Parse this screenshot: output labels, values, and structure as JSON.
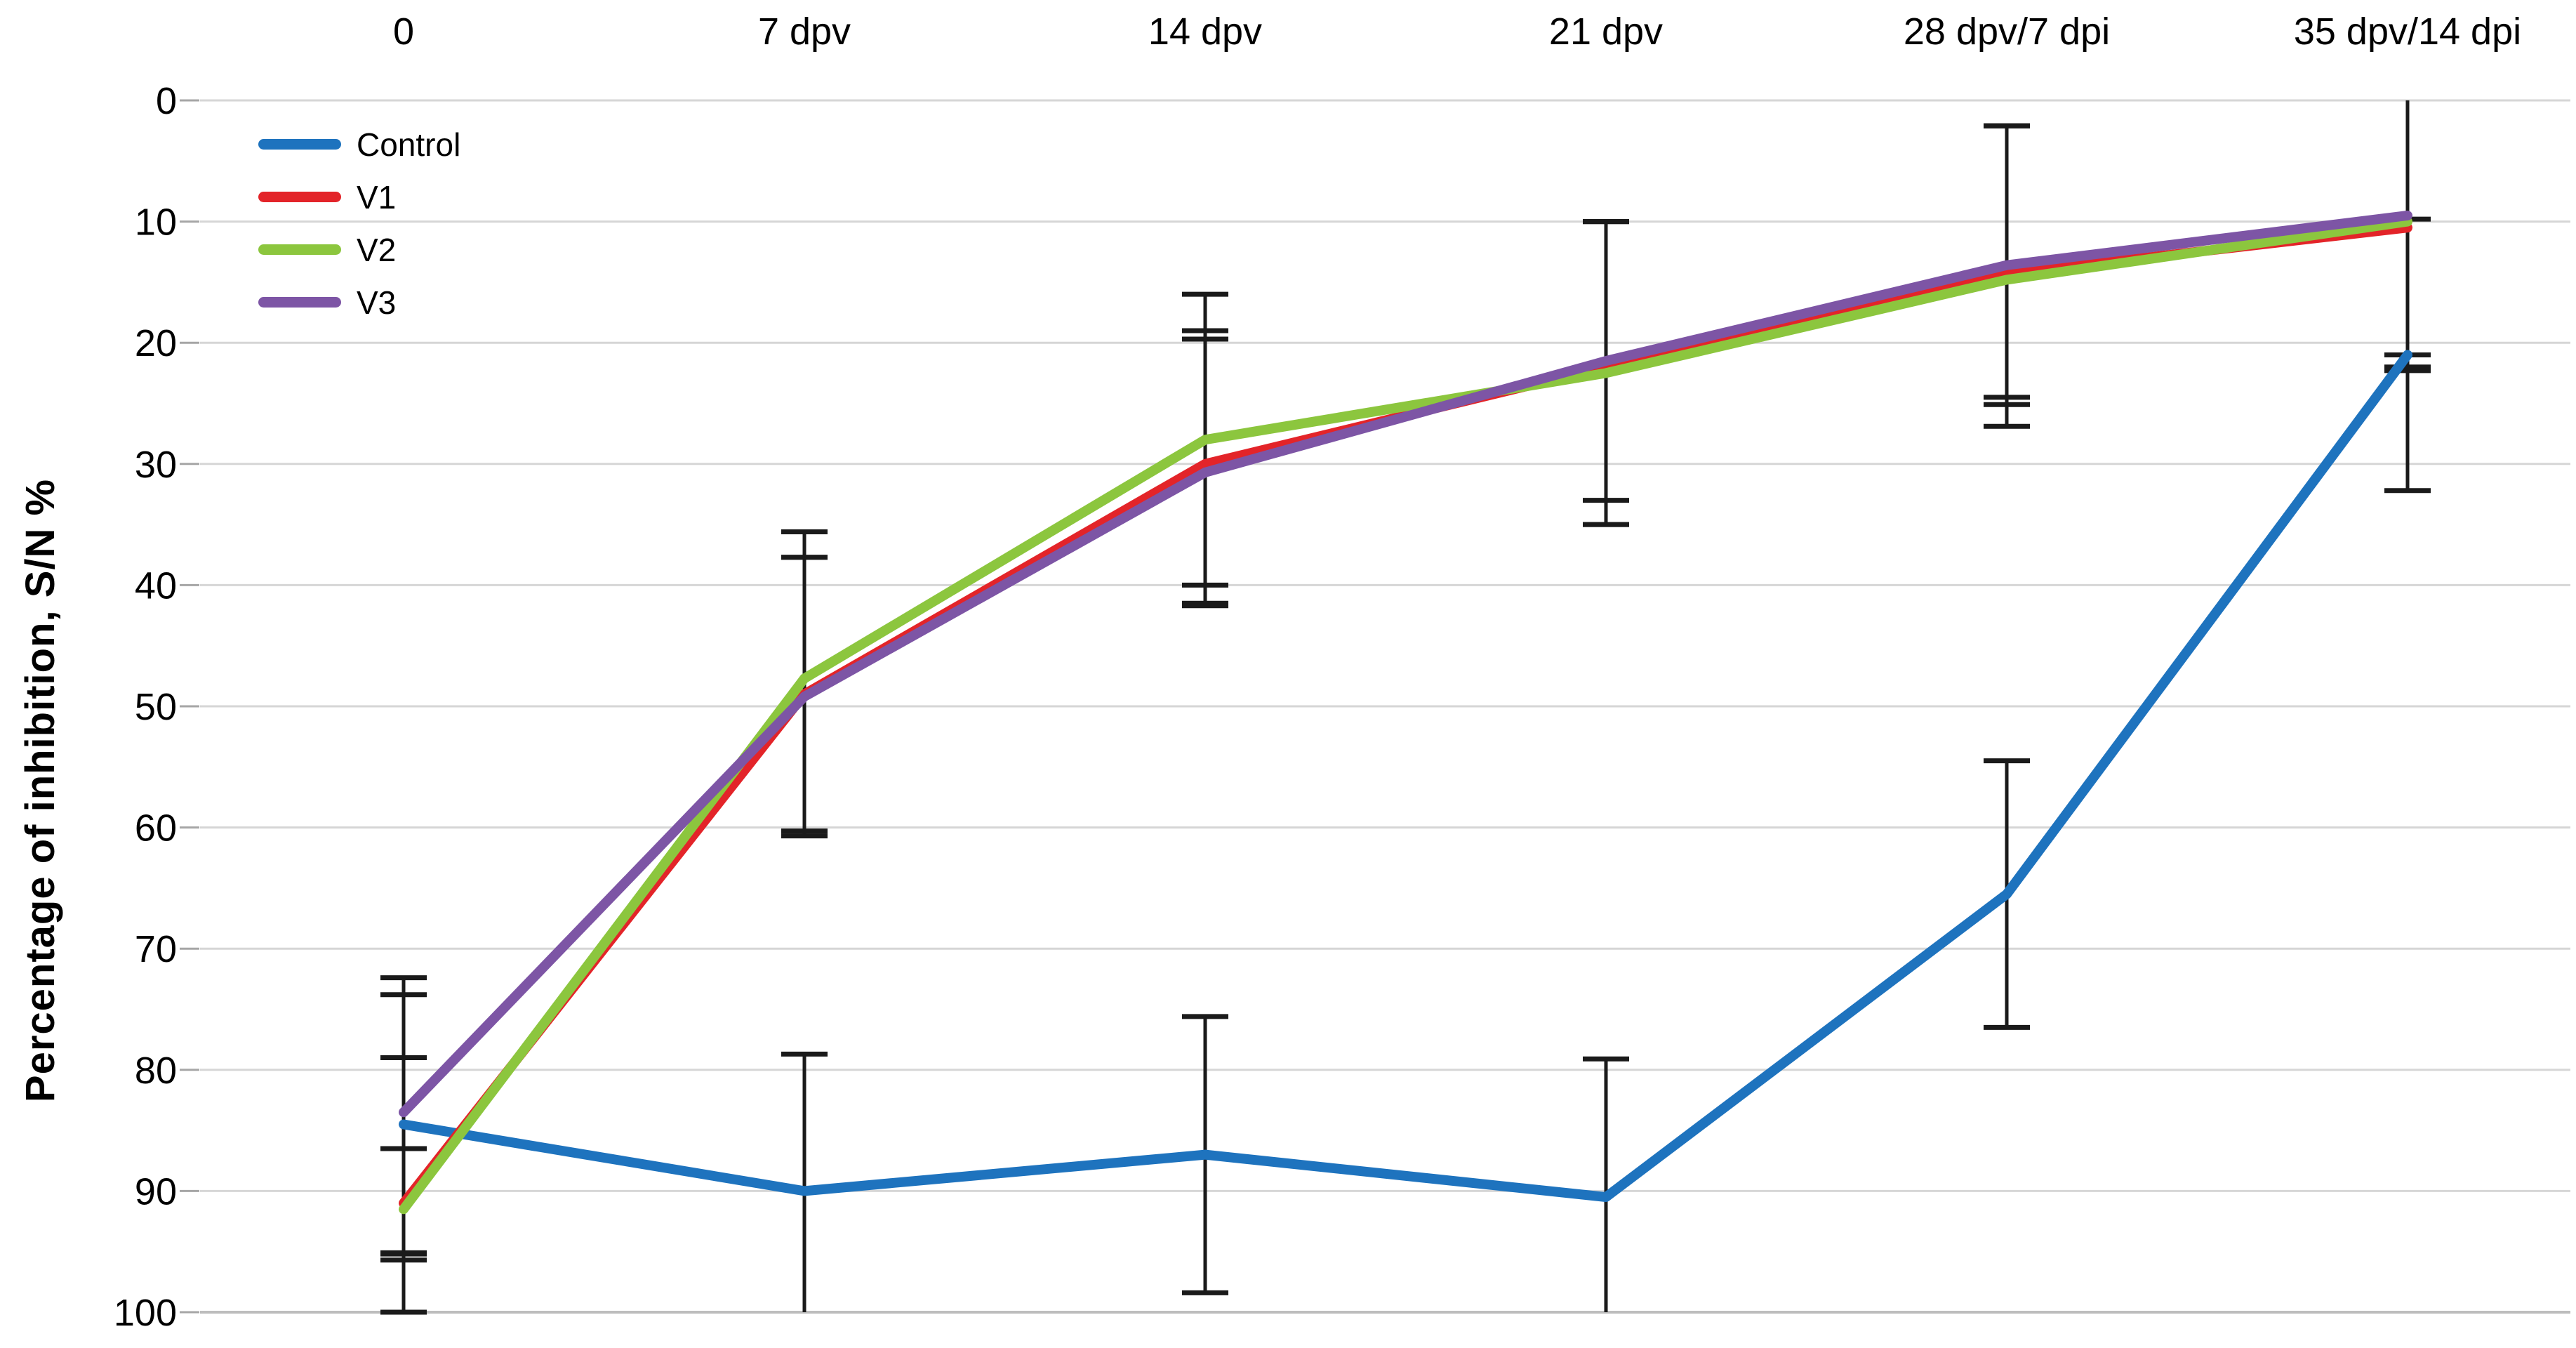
{
  "chart_data": {
    "type": "line",
    "title": "",
    "ylabel": "Percentage of inhibition, S/N %",
    "xlabel": "",
    "grid": true,
    "legend_position": "top-left",
    "error_bars": true,
    "y_axis": {
      "min": 0,
      "max": 100,
      "step": 10,
      "inverted": true,
      "tick_labels": [
        "0",
        "10",
        "20",
        "30",
        "40",
        "50",
        "60",
        "70",
        "80",
        "90",
        "100"
      ]
    },
    "categories": [
      "0",
      "7 dpv",
      "14 dpv",
      "21 dpv",
      "28 dpv/7 dpi",
      "35 dpv/14 dpi"
    ],
    "series": [
      {
        "name": "Control",
        "color": "#1E73BE",
        "values": [
          84.5,
          90,
          87,
          90.5,
          65.5,
          21
        ],
        "err_minus": [
          10.7,
          11.3,
          11.4,
          11.4,
          11,
          11.2
        ],
        "err_plus": [
          10.7,
          11.3,
          11.4,
          11.4,
          11,
          11.2
        ]
      },
      {
        "name": "V1",
        "color": "#E32429",
        "values": [
          91,
          49,
          30,
          22,
          14.3,
          10.5
        ],
        "err_minus": [
          4.5,
          11.3,
          11,
          12,
          12.2,
          11.8
        ],
        "err_plus": [
          4.7,
          11.3,
          11.5,
          13,
          12.6,
          11.8
        ]
      },
      {
        "name": "V2",
        "color": "#8CC63E",
        "values": [
          91.5,
          47.7,
          28,
          22.5,
          14.8,
          10
        ],
        "err_minus": [
          12.5,
          12.1,
          12,
          12.5,
          12.7,
          12
        ],
        "err_plus": [
          8.5,
          12.6,
          12,
          12.5,
          9.7,
          12
        ]
      },
      {
        "name": "V3",
        "color": "#7D55A5",
        "values": [
          83.5,
          49.2,
          30.7,
          21.5,
          13.6,
          9.5
        ],
        "err_minus": [
          11.1,
          11.5,
          11,
          11.5,
          11.5,
          11.5
        ],
        "err_plus": [
          11.6,
          11.5,
          11,
          11.5,
          11.5,
          11.5
        ]
      }
    ],
    "colors": {
      "gridline": "#D6D6D6",
      "axis_line": "#BDBDBD",
      "tick_mark": "#A6A6A6",
      "error_bar": "#1A1A1A",
      "text": "#000000"
    }
  }
}
